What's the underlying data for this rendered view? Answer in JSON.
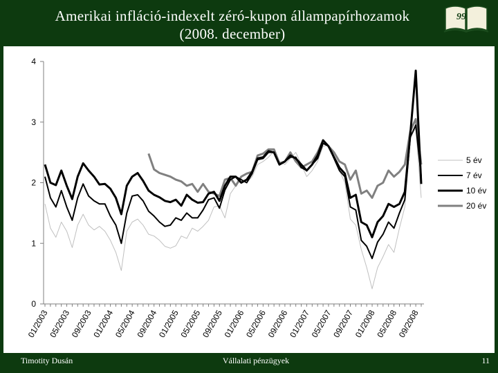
{
  "slide": {
    "title_line1": "Amerikai infláció-indexelt zéró-kupon állampapírhozamok",
    "title_line2": "(2008. december)",
    "logo_text": "99",
    "footer_author": "Timotity Dusán",
    "footer_course": "Vállalati pénzügyek",
    "page_number": "11"
  },
  "colors": {
    "background": "#0d3a0f",
    "panel": "#ffffff",
    "series_5": "#bfbfbf",
    "series_7": "#000000",
    "series_10": "#000000",
    "series_20": "#808080"
  },
  "chart_data": {
    "type": "line",
    "title": "",
    "xlabel": "",
    "ylabel": "",
    "ylim": [
      0,
      4
    ],
    "yticks": [
      "0",
      "1",
      "2",
      "3",
      "4"
    ],
    "x_start": "01/2003",
    "x_step": "month",
    "xtick_labels": [
      "01/2003",
      "05/2003",
      "09/2003",
      "01/2004",
      "05/2004",
      "09/2004",
      "01/2005",
      "05/2005",
      "09/2005",
      "01/2006",
      "05/2006",
      "09/2006",
      "01/2007",
      "05/2007",
      "09/2007",
      "01/2008",
      "05/2008",
      "09/2008"
    ],
    "legend_position": "right",
    "grid": false,
    "series": [
      {
        "name": "5 év",
        "values": [
          1.65,
          1.25,
          1.1,
          1.35,
          1.2,
          0.93,
          1.3,
          1.48,
          1.3,
          1.22,
          1.28,
          1.2,
          1.05,
          0.85,
          0.55,
          1.2,
          1.35,
          1.4,
          1.3,
          1.15,
          1.12,
          1.05,
          0.95,
          0.92,
          0.96,
          1.12,
          1.08,
          1.25,
          1.2,
          1.28,
          1.38,
          1.6,
          1.62,
          1.42,
          1.82,
          1.95,
          2.05,
          2.0,
          2.1,
          2.3,
          2.35,
          2.42,
          2.52,
          2.35,
          2.3,
          2.4,
          2.5,
          2.3,
          2.1,
          2.2,
          2.35,
          2.6,
          2.62,
          2.4,
          2.2,
          2.0,
          1.4,
          1.3,
          0.9,
          0.6,
          0.25,
          0.6,
          0.78,
          0.98,
          0.85,
          1.25,
          1.6,
          2.75,
          2.9,
          1.75
        ]
      },
      {
        "name": "7 év",
        "values": [
          2.1,
          1.75,
          1.6,
          1.87,
          1.6,
          1.38,
          1.75,
          1.98,
          1.78,
          1.7,
          1.65,
          1.65,
          1.45,
          1.3,
          1.0,
          1.5,
          1.78,
          1.8,
          1.7,
          1.53,
          1.45,
          1.35,
          1.28,
          1.3,
          1.42,
          1.38,
          1.5,
          1.42,
          1.42,
          1.55,
          1.72,
          1.75,
          1.58,
          1.88,
          2.05,
          2.1,
          2.05,
          2.0,
          2.15,
          2.38,
          2.4,
          2.5,
          2.5,
          2.3,
          2.35,
          2.42,
          2.42,
          2.25,
          2.2,
          2.3,
          2.4,
          2.65,
          2.6,
          2.4,
          2.2,
          2.1,
          1.6,
          1.55,
          1.05,
          0.95,
          0.75,
          1.02,
          1.15,
          1.35,
          1.25,
          1.5,
          1.72,
          2.75,
          2.95,
          2.1
        ]
      },
      {
        "name": "10 év",
        "values": [
          2.3,
          2.0,
          1.96,
          2.2,
          1.95,
          1.73,
          2.1,
          2.32,
          2.2,
          2.1,
          1.97,
          1.98,
          1.9,
          1.75,
          1.48,
          1.95,
          2.1,
          2.16,
          2.03,
          1.87,
          1.8,
          1.76,
          1.7,
          1.68,
          1.72,
          1.62,
          1.8,
          1.72,
          1.67,
          1.68,
          1.82,
          1.85,
          1.7,
          1.95,
          2.1,
          2.1,
          2.0,
          2.05,
          2.18,
          2.4,
          2.42,
          2.52,
          2.5,
          2.3,
          2.35,
          2.45,
          2.4,
          2.3,
          2.2,
          2.3,
          2.45,
          2.7,
          2.6,
          2.42,
          2.25,
          2.15,
          1.75,
          1.8,
          1.35,
          1.3,
          1.1,
          1.35,
          1.45,
          1.65,
          1.6,
          1.65,
          1.85,
          2.8,
          3.85,
          1.98
        ]
      },
      {
        "name": "20 év",
        "values": [
          null,
          null,
          null,
          null,
          null,
          null,
          null,
          null,
          null,
          null,
          null,
          null,
          null,
          null,
          null,
          null,
          null,
          null,
          null,
          2.48,
          2.22,
          2.16,
          2.13,
          2.1,
          2.05,
          2.02,
          1.95,
          1.98,
          1.85,
          1.98,
          1.85,
          1.82,
          1.78,
          2.05,
          2.08,
          1.95,
          2.1,
          2.15,
          2.18,
          2.45,
          2.48,
          2.55,
          2.55,
          2.32,
          2.35,
          2.5,
          2.35,
          2.25,
          2.3,
          2.35,
          2.5,
          2.7,
          2.6,
          2.5,
          2.35,
          2.3,
          2.05,
          2.2,
          1.82,
          1.87,
          1.75,
          1.95,
          2.0,
          2.2,
          2.1,
          2.18,
          2.3,
          2.85,
          3.05,
          2.3
        ]
      }
    ]
  }
}
